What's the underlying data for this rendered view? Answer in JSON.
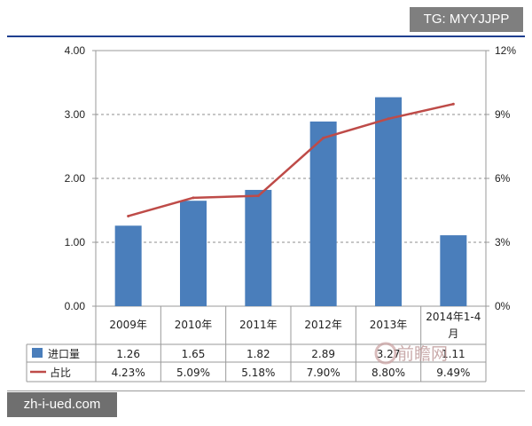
{
  "watermarks": {
    "tg": "TG: MYYJJPP",
    "site": "zh-i-ued.com",
    "logo_text": "前瞻网"
  },
  "chart_data": {
    "type": "bar",
    "categories": [
      "2009年",
      "2010年",
      "2011年",
      "2012年",
      "2013年",
      "2014年1-4月"
    ],
    "series": [
      {
        "name": "进口量",
        "type": "bar",
        "axis": "left",
        "color": "#4a7ebb",
        "values": [
          1.26,
          1.65,
          1.82,
          2.89,
          3.27,
          1.11
        ],
        "labels": [
          "1.26",
          "1.65",
          "1.82",
          "2.89",
          "3.27",
          "1.11"
        ]
      },
      {
        "name": "占比",
        "type": "line",
        "axis": "right",
        "color": "#be4b48",
        "values": [
          4.23,
          5.09,
          5.18,
          7.9,
          8.8,
          9.49
        ],
        "labels": [
          "4.23%",
          "5.09%",
          "5.18%",
          "7.90%",
          "8.80%",
          "9.49%"
        ]
      }
    ],
    "y_left": {
      "ylim": [
        0,
        4
      ],
      "ticks": [
        "0.00",
        "1.00",
        "2.00",
        "3.00",
        "4.00"
      ]
    },
    "y_right": {
      "ylim": [
        0,
        12
      ],
      "ticks": [
        "0%",
        "3%",
        "6%",
        "9%",
        "12%"
      ]
    },
    "grid": true,
    "legend": "data-table-below"
  }
}
